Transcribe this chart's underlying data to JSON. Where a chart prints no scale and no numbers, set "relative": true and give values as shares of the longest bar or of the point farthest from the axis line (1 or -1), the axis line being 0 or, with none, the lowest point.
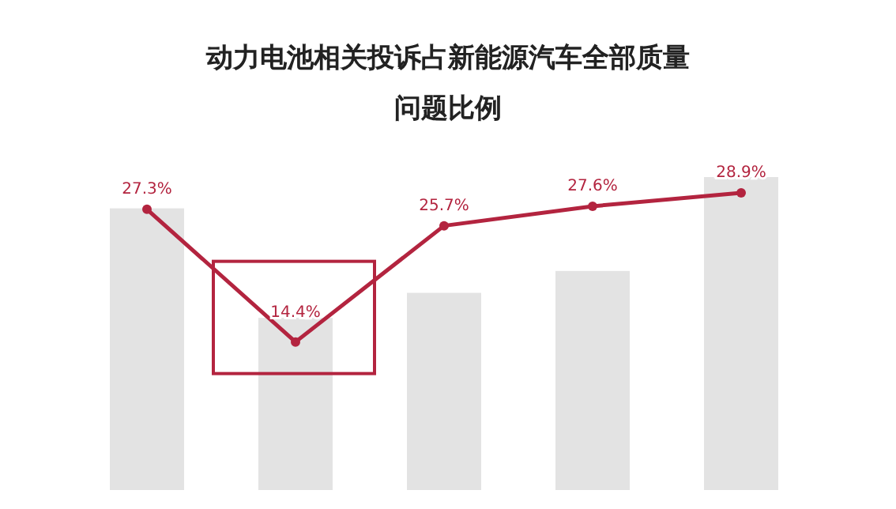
{
  "chart_data": [
    {
      "type": "bar",
      "title": "动力电池相关投诉占新能源汽车全部质量问题比例",
      "relative": true,
      "categories": [
        null,
        null,
        null,
        null,
        null
      ],
      "color": "#e3e3e3",
      "values": [
        0.9,
        0.55,
        0.63,
        0.7,
        1
      ]
    },
    {
      "type": "line",
      "categories": [
        null,
        null,
        null,
        null,
        null
      ],
      "color": "#b3243f",
      "values": [
        27.3,
        14.4,
        25.7,
        27.6,
        28.9
      ],
      "value_labels": [
        "27.3%",
        "14.4%",
        "25.7%",
        "27.6%",
        "28.9%"
      ],
      "marker": "circle",
      "line_style": "solid"
    }
  ]
}
